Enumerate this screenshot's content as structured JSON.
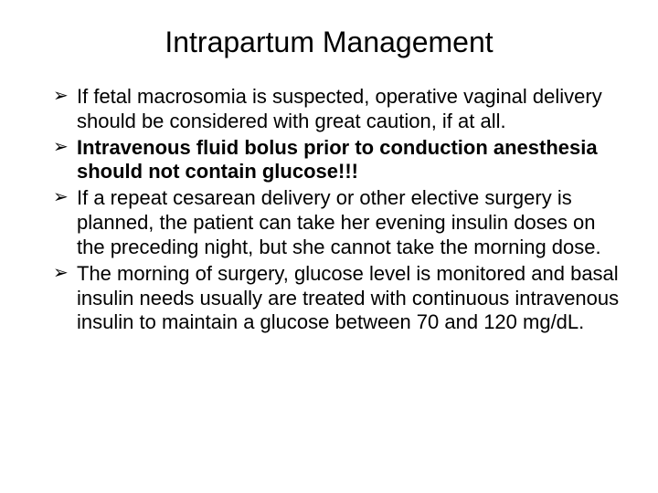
{
  "slide": {
    "title": "Intrapartum Management",
    "title_fontsize": 32,
    "body_fontsize": 22,
    "background_color": "#ffffff",
    "text_color": "#000000",
    "font_family": "Arial",
    "bullets": [
      {
        "text": "If fetal macrosomia is suspected, operative vaginal delivery should be considered with great caution, if at all.",
        "bold": false
      },
      {
        "text": "Intravenous fluid bolus prior to conduction anesthesia should not contain glucose!!!",
        "bold": true
      },
      {
        "text": "If a repeat cesarean delivery or other elective surgery is planned, the patient can take her evening insulin doses on the preceding night, but she cannot take the morning dose.",
        "bold": false
      },
      {
        "text": "The morning of surgery, glucose level is monitored and basal insulin needs usually are treated with continuous intravenous insulin to maintain a glucose between 70 and 120 mg/dL.",
        "bold": false
      }
    ]
  }
}
